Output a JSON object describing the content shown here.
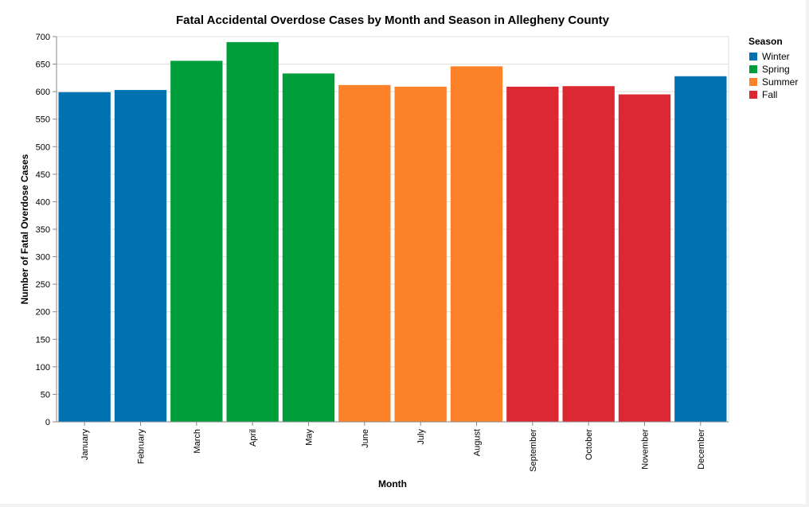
{
  "chart_data": {
    "type": "bar",
    "title": "Fatal Accidental Overdose Cases by Month and Season in Allegheny County",
    "xlabel": "Month",
    "ylabel": "Number of Fatal Overdose Cases",
    "ylim": [
      0,
      700
    ],
    "yticks": [
      0,
      50,
      100,
      150,
      200,
      250,
      300,
      350,
      400,
      450,
      500,
      550,
      600,
      650,
      700
    ],
    "grid": true,
    "categories": [
      "January",
      "February",
      "March",
      "April",
      "May",
      "June",
      "July",
      "August",
      "September",
      "October",
      "November",
      "December"
    ],
    "values": [
      599,
      603,
      656,
      690,
      633,
      612,
      609,
      646,
      609,
      610,
      595,
      628
    ],
    "season_of_category": [
      "Winter",
      "Winter",
      "Spring",
      "Spring",
      "Spring",
      "Summer",
      "Summer",
      "Summer",
      "Fall",
      "Fall",
      "Fall",
      "Winter"
    ],
    "legend": {
      "title": "Season",
      "placement": "top-right",
      "entries": [
        {
          "label": "Winter",
          "color": "#0072b2"
        },
        {
          "label": "Spring",
          "color": "#009e3a"
        },
        {
          "label": "Summer",
          "color": "#fd8128"
        },
        {
          "label": "Fall",
          "color": "#dc2832"
        }
      ]
    }
  }
}
